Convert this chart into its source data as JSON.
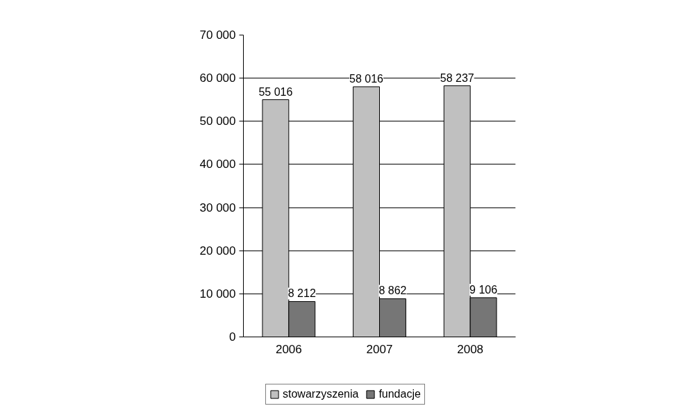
{
  "chart_data": {
    "type": "bar",
    "categories": [
      "2006",
      "2007",
      "2008"
    ],
    "series": [
      {
        "name": "stowarzyszenia",
        "color": "#c0c0c0",
        "values": [
          55016,
          58016,
          58237
        ],
        "value_labels": [
          "55 016",
          "58 016",
          "58 237"
        ]
      },
      {
        "name": "fundacje",
        "color": "#767676",
        "values": [
          8212,
          8862,
          9106
        ],
        "value_labels": [
          "8 212",
          "8 862",
          "9 106"
        ]
      }
    ],
    "ylim": [
      0,
      70000
    ],
    "yticks": [
      {
        "value": 0,
        "label": "0"
      },
      {
        "value": 10000,
        "label": "10 000"
      },
      {
        "value": 20000,
        "label": "20 000"
      },
      {
        "value": 30000,
        "label": "30 000"
      },
      {
        "value": 40000,
        "label": "40 000"
      },
      {
        "value": 50000,
        "label": "50 000"
      },
      {
        "value": 60000,
        "label": "60 000"
      },
      {
        "value": 70000,
        "label": "70 000"
      }
    ],
    "grid": "y",
    "legend": "bottom"
  }
}
